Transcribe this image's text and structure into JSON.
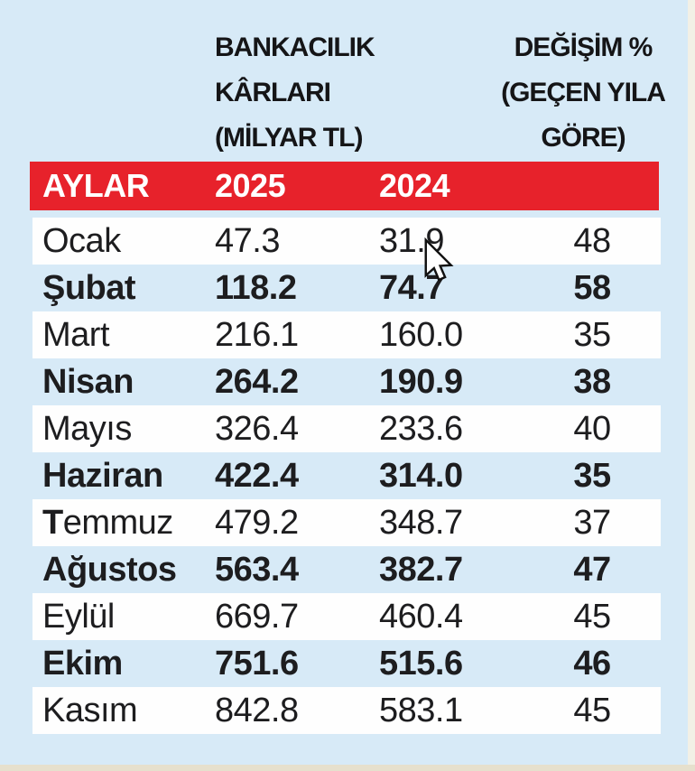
{
  "meta": {
    "background_color": "#d7eaf7",
    "accent_red": "#e7222b",
    "row_white": "#fefefe",
    "text_color": "#1d1d1f",
    "bottom_edge_color": "#e6e0cd",
    "right_edge_color": "#f2f0e6"
  },
  "header": {
    "profits_line1": "BANKACILIK KÂRLARI",
    "profits_line2": "(MİLYAR TL)",
    "change_line1": "DEĞİŞİM %",
    "change_line2": "(GEÇEN YILA",
    "change_line3": "GÖRE)"
  },
  "table": {
    "header_row": {
      "months": "AYLAR",
      "y2025": "2025",
      "y2024": "2024"
    },
    "rows": [
      {
        "month": "Ocak",
        "v2025": "47.3",
        "v2024": "31.9",
        "change": "48",
        "emphasis": false
      },
      {
        "month": "Şubat",
        "v2025": "118.2",
        "v2024": "74.7",
        "change": "58",
        "emphasis": true
      },
      {
        "month": "Mart",
        "v2025": "216.1",
        "v2024": "160.0",
        "change": "35",
        "emphasis": false
      },
      {
        "month": "Nisan",
        "v2025": "264.2",
        "v2024": "190.9",
        "change": "38",
        "emphasis": true
      },
      {
        "month": "Mayıs",
        "v2025": "326.4",
        "v2024": "233.6",
        "change": "40",
        "emphasis": false
      },
      {
        "month": "Haziran",
        "v2025": "422.4",
        "v2024": "314.0",
        "change": "35",
        "emphasis": true
      },
      {
        "month": "Temmuz",
        "v2025": "479.2",
        "v2024": "348.7",
        "change": "37",
        "emphasis": false,
        "bold_initial": true
      },
      {
        "month": "Ağustos",
        "v2025": "563.4",
        "v2024": "382.7",
        "change": "47",
        "emphasis": true
      },
      {
        "month": "Eylül",
        "v2025": "669.7",
        "v2024": "460.4",
        "change": "45",
        "emphasis": false
      },
      {
        "month": "Ekim",
        "v2025": "751.6",
        "v2024": "515.6",
        "change": "46",
        "emphasis": true
      },
      {
        "month": "Kasım",
        "v2025": "842.8",
        "v2024": "583.1",
        "change": "45",
        "emphasis": false
      }
    ]
  },
  "chart_data": {
    "type": "table",
    "title": "BANKACILIK KÂRLARI (MİLYAR TL) / DEĞİŞİM % (GEÇEN YILA GÖRE)",
    "column_headers": [
      "AYLAR",
      "2025",
      "2024",
      "DEĞİŞİM % (GEÇEN YILA GÖRE)"
    ],
    "categories": [
      "Ocak",
      "Şubat",
      "Mart",
      "Nisan",
      "Mayıs",
      "Haziran",
      "Temmuz",
      "Ağustos",
      "Eylül",
      "Ekim",
      "Kasım"
    ],
    "series": [
      {
        "name": "2025 (Milyar TL)",
        "values": [
          47.3,
          118.2,
          216.1,
          264.2,
          326.4,
          422.4,
          479.2,
          563.4,
          669.7,
          751.6,
          842.8
        ]
      },
      {
        "name": "2024 (Milyar TL)",
        "values": [
          31.9,
          74.7,
          160.0,
          190.9,
          233.6,
          314.0,
          348.7,
          382.7,
          460.4,
          515.6,
          583.1
        ]
      },
      {
        "name": "Değişim % (geçen yıla göre)",
        "values": [
          48,
          58,
          35,
          38,
          40,
          35,
          37,
          47,
          45,
          46,
          45
        ]
      }
    ],
    "legend_position": "none",
    "grid": false
  },
  "cursor": {
    "icon": "arrow-pointer"
  }
}
